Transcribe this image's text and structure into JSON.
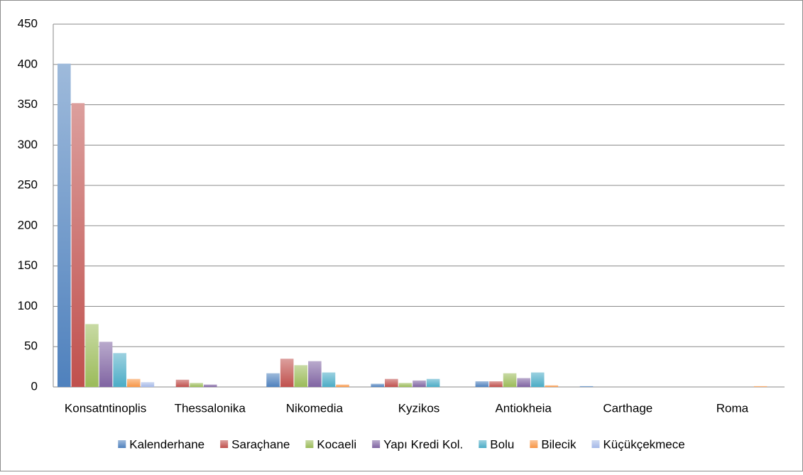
{
  "chart_data": {
    "type": "bar",
    "categories": [
      "Konsatntinoplis",
      "Thessalonika",
      "Nikomedia",
      "Kyzikos",
      "Antiokheia",
      "Carthage",
      "Roma"
    ],
    "series": [
      {
        "name": "Kalenderhane",
        "color": "#4f81bd",
        "values": [
          401,
          0,
          17,
          4,
          7,
          1,
          0
        ]
      },
      {
        "name": "Saraçhane",
        "color": "#c0504d",
        "values": [
          352,
          9,
          35,
          10,
          7,
          0,
          0
        ]
      },
      {
        "name": "Kocaeli",
        "color": "#9bbb59",
        "values": [
          78,
          5,
          27,
          5,
          17,
          0,
          0
        ]
      },
      {
        "name": "Yapı Kredi Kol.",
        "color": "#8064a2",
        "values": [
          56,
          3,
          32,
          8,
          11,
          0,
          0
        ]
      },
      {
        "name": "Bolu",
        "color": "#4bacc6",
        "values": [
          42,
          0,
          18,
          10,
          18,
          0,
          0
        ]
      },
      {
        "name": "Bilecik",
        "color": "#f79646",
        "values": [
          10,
          0,
          3,
          0,
          2,
          0,
          1
        ]
      },
      {
        "name": "Küçükçekmece",
        "color": "#a5b9e8",
        "values": [
          6,
          0,
          0,
          0,
          0,
          0,
          0
        ]
      }
    ],
    "ylim": [
      0,
      450
    ],
    "yticks": [
      0,
      50,
      100,
      150,
      200,
      250,
      300,
      350,
      400,
      450
    ],
    "grid": true,
    "legend": "bottom"
  }
}
